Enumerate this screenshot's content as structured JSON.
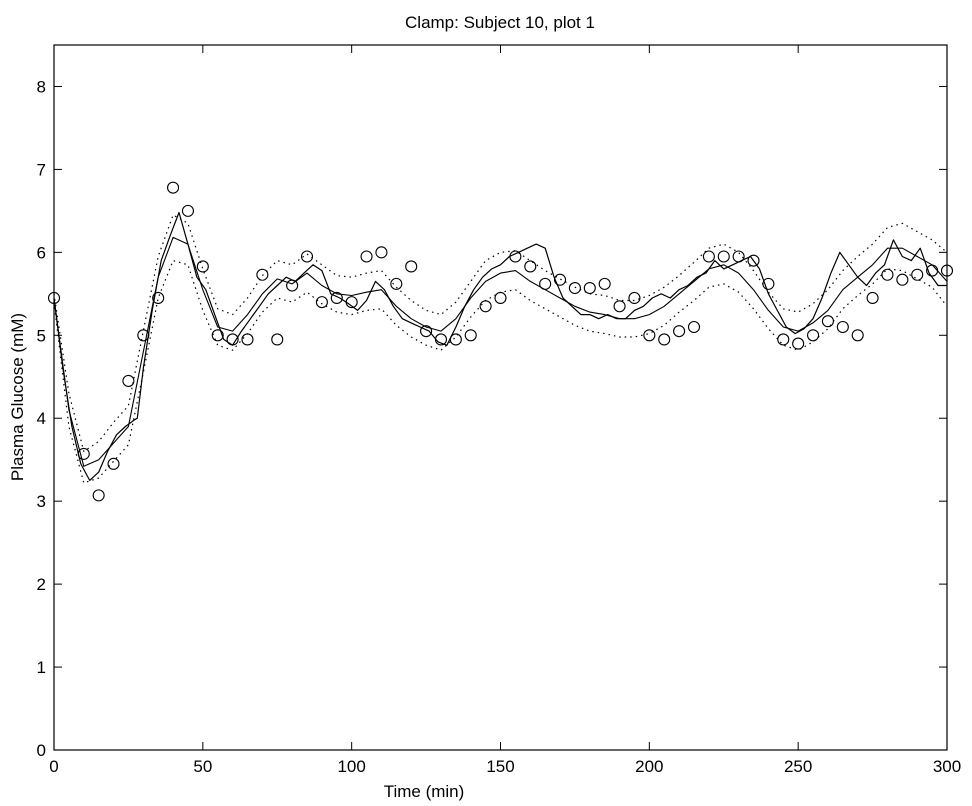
{
  "chart_data": {
    "type": "line",
    "title": "Clamp: Subject 10,  plot 1",
    "xlabel": "Time (min)",
    "ylabel": "Plasma  Glucose (mM)",
    "xlim": [
      0,
      300
    ],
    "ylim": [
      0,
      8.5
    ],
    "xticks": [
      0,
      50,
      100,
      150,
      200,
      250,
      300
    ],
    "yticks": [
      0,
      1,
      2,
      3,
      4,
      5,
      6,
      7,
      8
    ],
    "grid": false,
    "legend": "none",
    "series": [
      {
        "style": "markers-circle",
        "x": [
          0,
          10,
          15,
          20,
          25,
          30,
          35,
          40,
          45,
          50,
          55,
          60,
          65,
          70,
          75,
          80,
          85,
          90,
          95,
          100,
          105,
          110,
          115,
          120,
          125,
          130,
          135,
          140,
          145,
          150,
          155,
          160,
          165,
          170,
          175,
          180,
          185,
          190,
          195,
          200,
          205,
          210,
          215,
          220,
          225,
          230,
          235,
          240,
          245,
          250,
          255,
          260,
          265,
          270,
          275,
          280,
          285,
          290,
          295,
          300
        ],
        "y": [
          5.45,
          3.57,
          3.07,
          3.45,
          4.45,
          5.0,
          5.45,
          6.78,
          6.5,
          5.83,
          5.0,
          4.95,
          4.95,
          5.73,
          4.95,
          5.6,
          5.95,
          5.4,
          5.45,
          5.4,
          5.95,
          6.0,
          5.62,
          5.83,
          5.05,
          4.95,
          4.95,
          5.0,
          5.35,
          5.45,
          5.95,
          5.83,
          5.62,
          5.67,
          5.57,
          5.57,
          5.62,
          5.35,
          5.45,
          5.0,
          4.95,
          5.05,
          5.1,
          5.95,
          5.95,
          5.95,
          5.9,
          5.62,
          4.95,
          4.9,
          5.0,
          5.17,
          5.1,
          5.0,
          5.45,
          5.73,
          5.67,
          5.73,
          5.78,
          5.78
        ]
      },
      {
        "style": "solid-smooth",
        "x": [
          0,
          5,
          10,
          15,
          20,
          25,
          30,
          35,
          40,
          45,
          50,
          55,
          60,
          65,
          70,
          75,
          80,
          85,
          90,
          95,
          100,
          105,
          110,
          115,
          120,
          125,
          130,
          135,
          140,
          145,
          150,
          155,
          160,
          165,
          170,
          175,
          180,
          185,
          190,
          195,
          200,
          205,
          210,
          215,
          220,
          225,
          230,
          235,
          240,
          245,
          250,
          255,
          260,
          265,
          270,
          275,
          280,
          285,
          290,
          295,
          300
        ],
        "y": [
          5.45,
          4.1,
          3.42,
          3.5,
          3.7,
          3.9,
          4.8,
          5.7,
          6.18,
          6.1,
          5.55,
          5.1,
          5.05,
          5.25,
          5.5,
          5.68,
          5.62,
          5.75,
          5.6,
          5.5,
          5.48,
          5.52,
          5.55,
          5.35,
          5.2,
          5.1,
          5.05,
          5.2,
          5.45,
          5.65,
          5.75,
          5.78,
          5.65,
          5.55,
          5.45,
          5.35,
          5.28,
          5.25,
          5.2,
          5.2,
          5.25,
          5.35,
          5.5,
          5.65,
          5.8,
          5.85,
          5.75,
          5.55,
          5.3,
          5.1,
          5.05,
          5.15,
          5.3,
          5.55,
          5.7,
          5.85,
          6.05,
          6.05,
          5.95,
          5.85,
          5.65
        ]
      },
      {
        "style": "dotted-upper",
        "x": [
          0,
          5,
          10,
          15,
          20,
          25,
          30,
          35,
          40,
          45,
          50,
          55,
          60,
          65,
          70,
          75,
          80,
          85,
          90,
          95,
          100,
          105,
          110,
          115,
          120,
          125,
          130,
          135,
          140,
          145,
          150,
          155,
          160,
          165,
          170,
          175,
          180,
          185,
          190,
          195,
          200,
          205,
          210,
          215,
          220,
          225,
          230,
          235,
          240,
          245,
          250,
          255,
          260,
          265,
          270,
          275,
          280,
          285,
          290,
          295,
          300
        ],
        "y": [
          5.5,
          4.3,
          3.6,
          3.72,
          3.95,
          4.15,
          5.05,
          5.95,
          6.45,
          6.35,
          5.8,
          5.32,
          5.25,
          5.45,
          5.72,
          5.9,
          5.85,
          5.98,
          5.85,
          5.72,
          5.7,
          5.75,
          5.78,
          5.58,
          5.42,
          5.3,
          5.25,
          5.4,
          5.65,
          5.9,
          6.0,
          6.02,
          5.9,
          5.78,
          5.68,
          5.58,
          5.5,
          5.48,
          5.42,
          5.42,
          5.48,
          5.58,
          5.72,
          5.88,
          6.05,
          6.1,
          6.0,
          5.78,
          5.52,
          5.32,
          5.28,
          5.38,
          5.55,
          5.78,
          5.95,
          6.1,
          6.3,
          6.35,
          6.25,
          6.15,
          6.0
        ]
      },
      {
        "style": "dotted-lower",
        "x": [
          0,
          5,
          10,
          15,
          20,
          25,
          30,
          35,
          40,
          45,
          50,
          55,
          60,
          65,
          70,
          75,
          80,
          85,
          90,
          95,
          100,
          105,
          110,
          115,
          120,
          125,
          130,
          135,
          140,
          145,
          150,
          155,
          160,
          165,
          170,
          175,
          180,
          185,
          190,
          195,
          200,
          205,
          210,
          215,
          220,
          225,
          230,
          235,
          240,
          245,
          250,
          255,
          260,
          265,
          270,
          275,
          280,
          285,
          290,
          295,
          300
        ],
        "y": [
          5.4,
          3.9,
          3.22,
          3.28,
          3.48,
          3.68,
          4.55,
          5.45,
          5.9,
          5.85,
          5.3,
          4.88,
          4.82,
          5.02,
          5.28,
          5.45,
          5.4,
          5.52,
          5.38,
          5.28,
          5.25,
          5.3,
          5.32,
          5.12,
          4.98,
          4.88,
          4.82,
          4.98,
          5.22,
          5.42,
          5.52,
          5.55,
          5.42,
          5.32,
          5.22,
          5.12,
          5.05,
          5.02,
          4.98,
          4.98,
          5.02,
          5.12,
          5.28,
          5.42,
          5.58,
          5.62,
          5.52,
          5.32,
          5.08,
          4.88,
          4.82,
          4.92,
          5.08,
          5.32,
          5.48,
          5.62,
          5.8,
          5.78,
          5.68,
          5.58,
          5.35
        ]
      },
      {
        "style": "solid-noisy",
        "x": [
          0,
          3,
          6,
          9,
          12,
          15,
          18,
          21,
          24,
          27,
          28,
          30,
          33,
          36,
          39,
          42,
          45,
          48,
          51,
          54,
          57,
          60,
          63,
          66,
          69,
          72,
          75,
          78,
          81,
          84,
          87,
          90,
          93,
          96,
          99,
          102,
          105,
          108,
          111,
          114,
          117,
          120,
          123,
          126,
          129,
          132,
          135,
          138,
          141,
          144,
          147,
          150,
          153,
          156,
          159,
          162,
          165,
          168,
          171,
          174,
          177,
          180,
          183,
          186,
          189,
          192,
          195,
          198,
          201,
          204,
          207,
          210,
          213,
          216,
          219,
          222,
          225,
          228,
          231,
          234,
          237,
          240,
          243,
          246,
          249,
          252,
          255,
          258,
          261,
          264,
          267,
          270,
          273,
          276,
          279,
          282,
          285,
          288,
          291,
          294,
          297,
          300
        ],
        "y": [
          5.45,
          4.6,
          3.9,
          3.45,
          3.25,
          3.35,
          3.6,
          3.8,
          3.9,
          3.98,
          4.0,
          4.6,
          5.3,
          5.9,
          6.2,
          6.48,
          6.1,
          5.7,
          5.55,
          5.25,
          4.95,
          4.88,
          5.05,
          5.2,
          5.35,
          5.5,
          5.6,
          5.7,
          5.65,
          5.75,
          5.85,
          5.78,
          5.5,
          5.45,
          5.38,
          5.3,
          5.42,
          5.65,
          5.55,
          5.35,
          5.2,
          5.15,
          5.1,
          5.05,
          4.92,
          4.88,
          5.1,
          5.35,
          5.55,
          5.7,
          5.8,
          5.85,
          5.95,
          6.0,
          6.05,
          6.1,
          6.05,
          5.7,
          5.45,
          5.35,
          5.25,
          5.25,
          5.2,
          5.25,
          5.2,
          5.2,
          5.3,
          5.35,
          5.45,
          5.5,
          5.45,
          5.55,
          5.6,
          5.7,
          5.75,
          5.9,
          5.8,
          5.85,
          5.9,
          5.95,
          5.8,
          5.5,
          5.3,
          5.1,
          5.02,
          5.08,
          5.2,
          5.45,
          5.75,
          6.0,
          5.85,
          5.7,
          5.6,
          5.75,
          5.85,
          6.15,
          5.95,
          5.9,
          6.05,
          5.75,
          5.6,
          5.6
        ]
      }
    ]
  }
}
